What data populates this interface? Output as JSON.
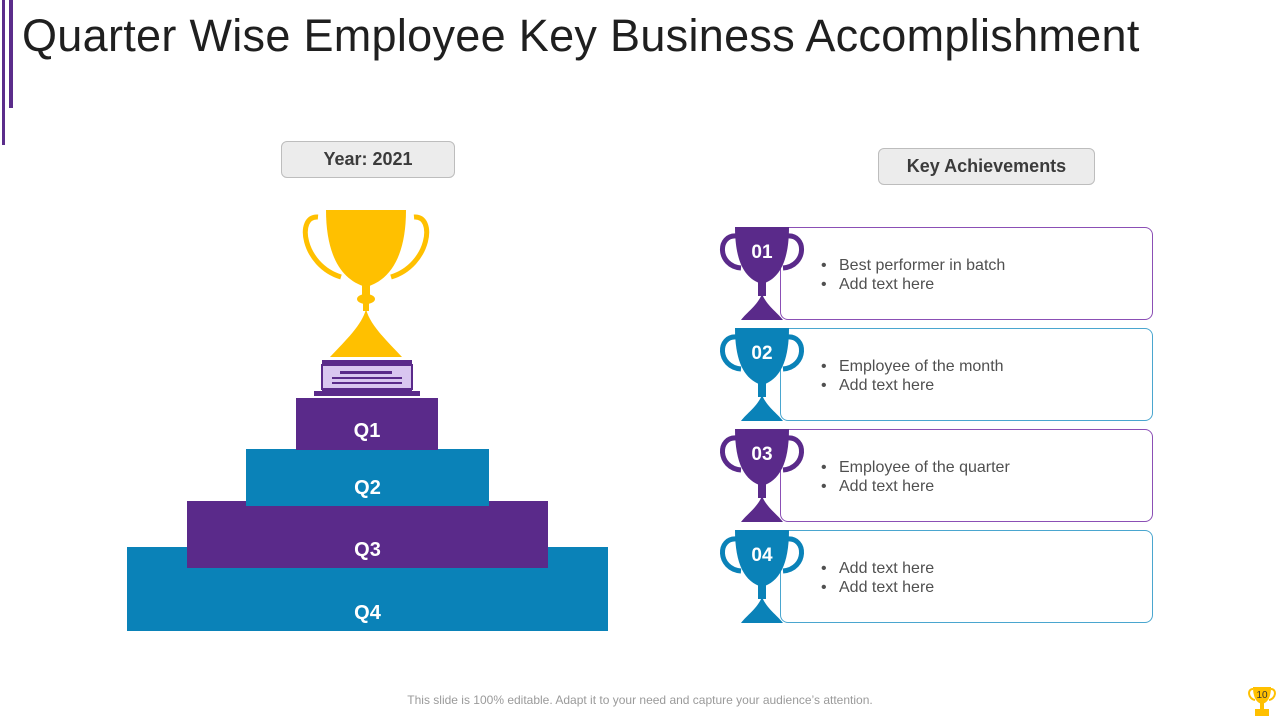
{
  "title": "Quarter Wise Employee Key Business Accomplishment",
  "year_label": "Year: 2021",
  "key_label": "Key Achievements",
  "steps": [
    "Q1",
    "Q2",
    "Q3",
    "Q4"
  ],
  "achievements": [
    {
      "num": "01",
      "items": [
        "Best performer in batch",
        "Add text here"
      ],
      "color": "#5a2a8a"
    },
    {
      "num": "02",
      "items": [
        "Employee of the month",
        "Add text here"
      ],
      "color": "#0a82b8"
    },
    {
      "num": "03",
      "items": [
        "Employee of the quarter",
        "Add text here"
      ],
      "color": "#5a2a8a"
    },
    {
      "num": "04",
      "items": [
        "Add text here",
        "Add text here"
      ],
      "color": "#0a82b8"
    }
  ],
  "footer": "This slide is 100% editable. Adapt it to your need and capture your audience’s attention.",
  "page_number": "10",
  "colors": {
    "purple": "#5a2a8a",
    "blue": "#0a82b8",
    "gold": "#ffc000"
  }
}
